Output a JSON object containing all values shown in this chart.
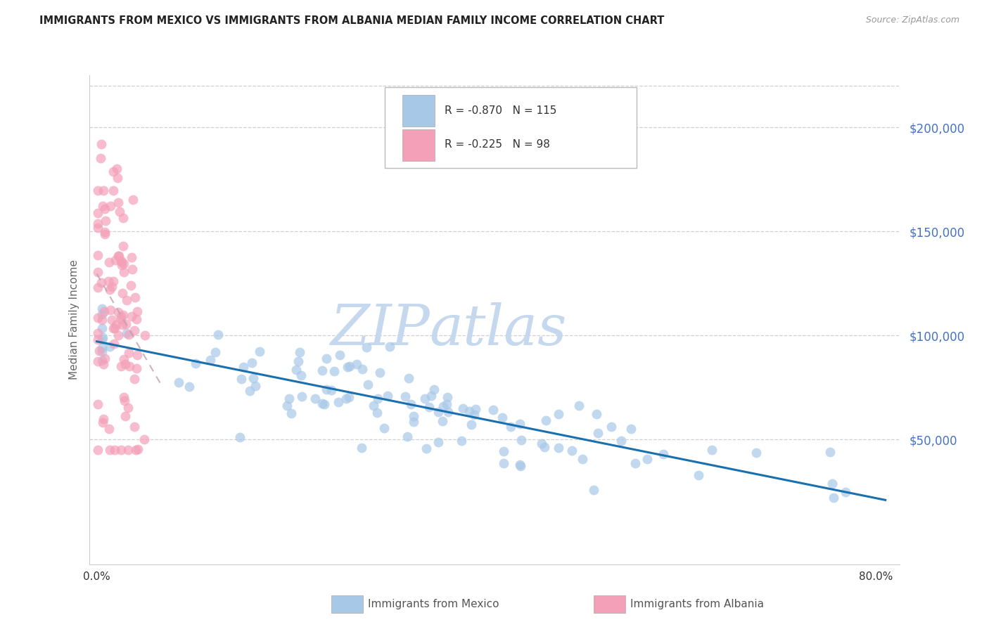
{
  "title": "IMMIGRANTS FROM MEXICO VS IMMIGRANTS FROM ALBANIA MEDIAN FAMILY INCOME CORRELATION CHART",
  "source": "Source: ZipAtlas.com",
  "ylabel": "Median Family Income",
  "right_ytick_labels": [
    "",
    "$50,000",
    "$100,000",
    "$150,000",
    "$200,000"
  ],
  "right_ytick_vals": [
    0,
    50000,
    100000,
    150000,
    200000
  ],
  "watermark_part1": "ZIP",
  "watermark_part2": "atlas",
  "R_mexico": -0.87,
  "N_mexico": 115,
  "R_albania": -0.225,
  "N_albania": 98,
  "color_mexico": "#a8c8e8",
  "color_albania": "#f4a0b8",
  "line_color_mexico": "#1a6faf",
  "line_color_albania": "#c0a0b0",
  "background_color": "#ffffff",
  "title_color": "#222222",
  "right_axis_color": "#4472c4",
  "source_color": "#999999",
  "xmin": 0.0,
  "xmax": 0.8,
  "ymin": 0,
  "ymax": 220000
}
